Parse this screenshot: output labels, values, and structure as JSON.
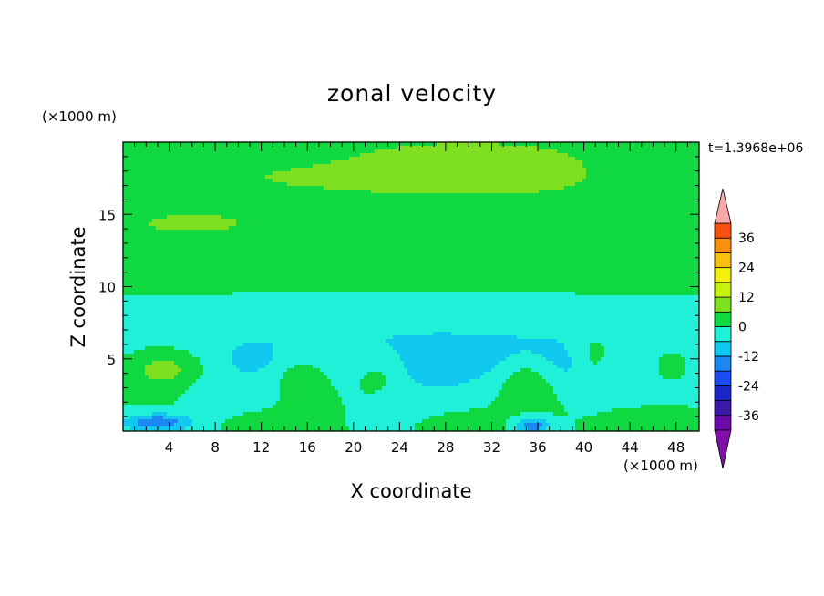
{
  "chart_data": {
    "type": "heatmap",
    "title": "zonal velocity",
    "xlabel": "X coordinate",
    "ylabel": "Z coordinate",
    "x_unit": "(×1000 m)",
    "y_unit": "(×1000 m)",
    "annotation": "t=1.3968e+06",
    "xlim": [
      0,
      50
    ],
    "ylim": [
      0,
      20
    ],
    "x_ticks": [
      4,
      8,
      12,
      16,
      20,
      24,
      28,
      32,
      36,
      40,
      44,
      48
    ],
    "y_ticks": [
      5,
      10,
      15
    ],
    "colorbar": {
      "levels": [
        -42,
        -36,
        -30,
        -24,
        -18,
        -12,
        -6,
        0,
        6,
        12,
        18,
        24,
        30,
        36,
        42
      ],
      "labels": [
        "-36",
        "-24",
        "-12",
        "0",
        "12",
        "24",
        "36"
      ],
      "label_values": [
        -36,
        -24,
        -12,
        0,
        12,
        24,
        36
      ],
      "colors": [
        "#6a0aa8",
        "#3c18a8",
        "#1a28c8",
        "#1a4cf0",
        "#1a88f0",
        "#10c8f0",
        "#20f0d8",
        "#10d840",
        "#7ee020",
        "#c8f010",
        "#f4f010",
        "#f8c010",
        "#f89010",
        "#f85010",
        "#f01010"
      ],
      "under_color": "#8010a8",
      "over_color": "#f8a8a8"
    },
    "fields": [
      {
        "x": 30,
        "z": 18.8,
        "rx": 9,
        "rz": 1.2,
        "value": 13
      },
      {
        "x": 25,
        "z": 17.3,
        "rx": 26,
        "rz": 2.2,
        "value": 8
      },
      {
        "x": 12,
        "z": 15.2,
        "rx": 14,
        "rz": 1.5,
        "value": 3
      },
      {
        "x": 6,
        "z": 14.3,
        "rx": 9,
        "rz": 1.3,
        "value": 7
      },
      {
        "x": 30,
        "z": 13.3,
        "rx": 3.5,
        "rz": 1.4,
        "value": 1
      },
      {
        "x": 40,
        "z": 13.2,
        "rx": 2.5,
        "rz": 1.3,
        "value": 1
      },
      {
        "x": 47,
        "z": 14.5,
        "rx": 3,
        "rz": 1.5,
        "value": 2
      },
      {
        "x": 25,
        "z": 9.8,
        "rx": 30,
        "rz": 2.6,
        "value": 1
      },
      {
        "x": 25,
        "z": 6.2,
        "rx": 30,
        "rz": 2.4,
        "value": -6
      },
      {
        "x": 36,
        "z": 4.6,
        "rx": 10,
        "rz": 1.6,
        "value": -9
      },
      {
        "x": 12,
        "z": 4.8,
        "rx": 4.5,
        "rz": 1.4,
        "value": -8
      },
      {
        "x": 27,
        "z": 4.2,
        "rx": 3,
        "rz": 1.3,
        "value": -11
      },
      {
        "x": 3.5,
        "z": 4.2,
        "rx": 3.5,
        "rz": 1.5,
        "value": 8
      },
      {
        "x": 15.5,
        "z": 3.4,
        "rx": 2.6,
        "rz": 1.8,
        "value": 3
      },
      {
        "x": 35,
        "z": 3.2,
        "rx": 2.6,
        "rz": 1.7,
        "value": 4
      },
      {
        "x": 41,
        "z": 5.4,
        "rx": 1.8,
        "rz": 2,
        "value": 1
      },
      {
        "x": 47.5,
        "z": 4.6,
        "rx": 2.5,
        "rz": 1.8,
        "value": 1
      },
      {
        "x": 22,
        "z": 3.5,
        "rx": 2.2,
        "rz": 1.5,
        "value": 1
      },
      {
        "x": 9,
        "z": 2.3,
        "rx": 3,
        "rz": 1.6,
        "value": -6
      },
      {
        "x": 26,
        "z": 1.8,
        "rx": 3,
        "rz": 1.4,
        "value": -5
      },
      {
        "x": 3,
        "z": 0.6,
        "rx": 3,
        "rz": 0.6,
        "value": -17
      },
      {
        "x": 35.5,
        "z": 0.4,
        "rx": 1.5,
        "rz": 0.5,
        "value": -16
      },
      {
        "x": 12,
        "z": 0.5,
        "rx": 3,
        "rz": 0.8,
        "value": 5
      },
      {
        "x": 29,
        "z": 0.5,
        "rx": 3,
        "rz": 0.7,
        "value": 6
      },
      {
        "x": 46,
        "z": 0.5,
        "rx": 3,
        "rz": 0.7,
        "value": 5
      }
    ]
  }
}
